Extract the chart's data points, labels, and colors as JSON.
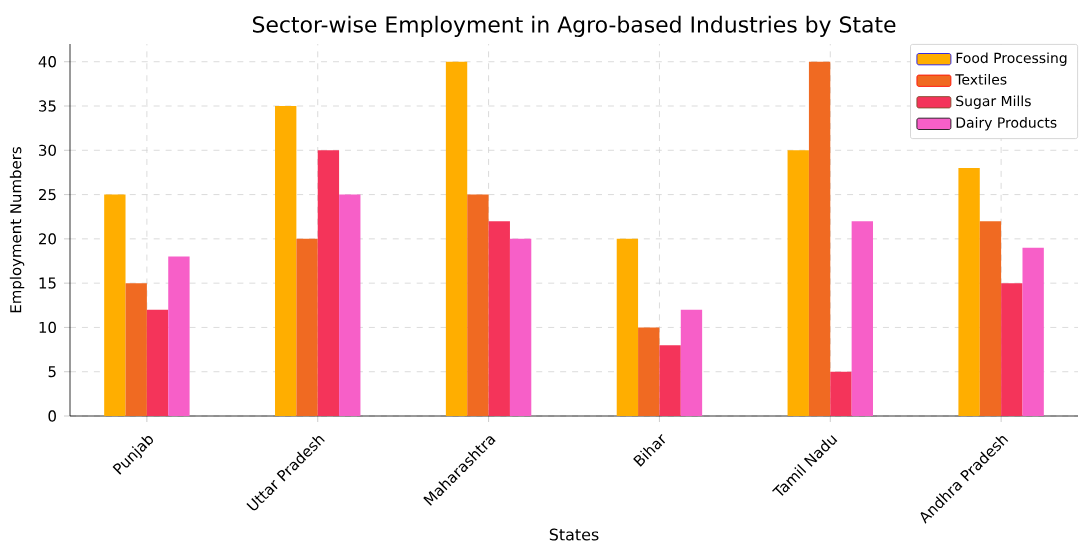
{
  "chart_data": {
    "type": "bar",
    "title": "Sector-wise Employment in Agro-based Industries by State",
    "xlabel": "States",
    "ylabel": "Employment Numbers",
    "categories": [
      "Punjab",
      "Uttar Pradesh",
      "Maharashtra",
      "Bihar",
      "Tamil Nadu",
      "Andhra Pradesh"
    ],
    "series": [
      {
        "name": "Food Processing",
        "color": "#ffae00",
        "values": [
          25,
          35,
          40,
          20,
          30,
          28
        ]
      },
      {
        "name": "Textiles",
        "color": "#f06a22",
        "values": [
          15,
          20,
          25,
          10,
          40,
          22
        ]
      },
      {
        "name": "Sugar Mills",
        "color": "#f4345a",
        "values": [
          12,
          30,
          22,
          8,
          5,
          15
        ]
      },
      {
        "name": "Dairy Products",
        "color": "#f75fc8",
        "values": [
          18,
          25,
          20,
          12,
          22,
          19
        ]
      }
    ],
    "ylim": [
      0,
      42
    ],
    "yticks": [
      0,
      5,
      10,
      15,
      20,
      25,
      30,
      35,
      40
    ],
    "grid": true,
    "legend": "top right"
  }
}
